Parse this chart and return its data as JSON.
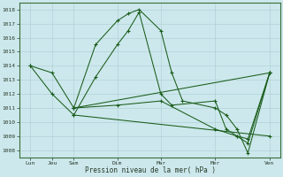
{
  "background_color": "#cce8ec",
  "grid_color": "#aacdd4",
  "line_color": "#1a5c1a",
  "marker_color": "#1a5c1a",
  "xlabel": "Pression niveau de la mer( hPa )",
  "ylim": [
    1007.5,
    1018.5
  ],
  "yticks": [
    1008,
    1009,
    1010,
    1011,
    1012,
    1013,
    1014,
    1015,
    1016,
    1017,
    1018
  ],
  "xtick_labels": [
    "Lun",
    "Jeu",
    "Sam",
    "Dim",
    "Mar",
    "Mer",
    "Ven"
  ],
  "xtick_positions": [
    0,
    2,
    4,
    8,
    12,
    17,
    22
  ],
  "xlim": [
    -1,
    23
  ],
  "line1": {
    "x": [
      0,
      2,
      4,
      6,
      8,
      9,
      10,
      12,
      13,
      14,
      17,
      18,
      19,
      20,
      22
    ],
    "y": [
      1014.0,
      1013.5,
      1011.0,
      1015.5,
      1017.2,
      1017.7,
      1018.0,
      1016.5,
      1013.5,
      1011.5,
      1011.0,
      1010.5,
      1009.5,
      1007.8,
      1013.5
    ]
  },
  "line2": {
    "x": [
      0,
      2,
      4,
      6,
      8,
      9,
      10,
      12,
      13,
      17,
      18,
      19,
      20,
      22
    ],
    "y": [
      1014.0,
      1012.0,
      1010.5,
      1013.2,
      1015.5,
      1016.5,
      1017.8,
      1012.0,
      1011.2,
      1011.5,
      1009.5,
      1009.0,
      1008.8,
      1013.5
    ]
  },
  "line3": {
    "x": [
      4,
      8,
      12,
      17,
      19,
      20,
      22
    ],
    "y": [
      1011.0,
      1011.2,
      1011.5,
      1009.5,
      1009.0,
      1008.5,
      1013.5
    ]
  },
  "line4": {
    "x": [
      4,
      22
    ],
    "y": [
      1011.0,
      1013.5
    ]
  },
  "line5": {
    "x": [
      4,
      22
    ],
    "y": [
      1010.5,
      1009.0
    ]
  }
}
